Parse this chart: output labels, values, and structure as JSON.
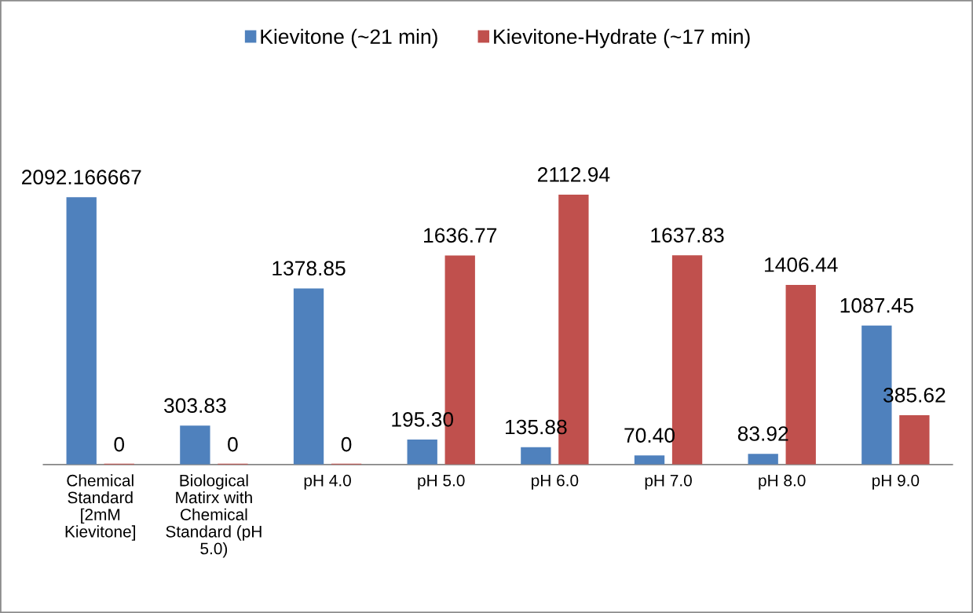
{
  "chart_data": {
    "type": "bar",
    "categories": [
      "Chemical\nStandard\n[2mM\nKievitone]",
      "Biological\nMatirx with\nChemical\nStandard (pH\n5.0)",
      "pH 4.0",
      "pH 5.0",
      "pH 6.0",
      "pH 7.0",
      "pH 8.0",
      "pH 9.0"
    ],
    "series": [
      {
        "name": "Kievitone (~21 min)",
        "color": "#4f81bd",
        "values": [
          2092.166667,
          303.83,
          1378.85,
          195.3,
          135.88,
          70.4,
          83.92,
          1087.45
        ],
        "value_labels": [
          "2092.166667",
          "303.83",
          "1378.85",
          "195.30",
          "135.88",
          "70.40",
          "83.92",
          "1087.45"
        ]
      },
      {
        "name": "Kievitone-Hydrate (~17 min)",
        "color": "#c0504d",
        "values": [
          0,
          0,
          0,
          1636.77,
          2112.94,
          1637.83,
          1406.44,
          385.62
        ],
        "value_labels": [
          "0",
          "0",
          "0",
          "1636.77",
          "2112.94",
          "1637.83",
          "1406.44",
          "385.62"
        ]
      }
    ],
    "tick_labels": "x",
    "legend": "top",
    "grid": false
  }
}
